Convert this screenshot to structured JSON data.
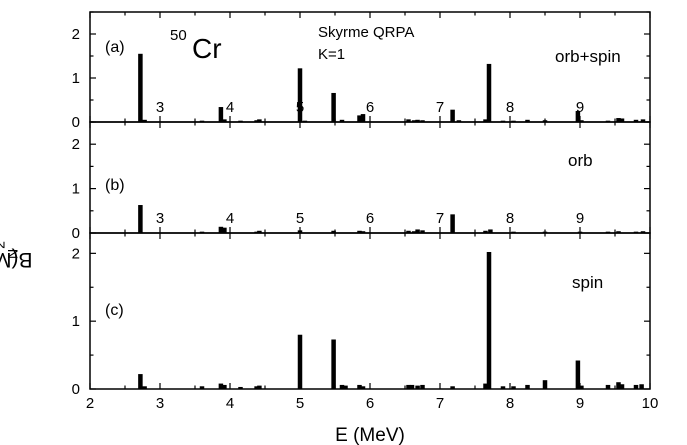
{
  "chart_data": {
    "type": "bar",
    "xlabel": "E (MeV)",
    "ylabel_main": "B(M1) (μ",
    "ylabel_sub": "N",
    "ylabel_sup": "2",
    "ylabel_close": ")",
    "xlim": [
      2,
      10
    ],
    "x_ticks": [
      "2",
      "3",
      "4",
      "5",
      "6",
      "7",
      "8",
      "9",
      "10"
    ],
    "annotation_isotope_mass": "50",
    "annotation_isotope": "Cr",
    "annotation_method": "Skyrme QRPA",
    "annotation_k": "K=1",
    "panels": [
      {
        "panel_label": "(a)",
        "series_label": "orb+spin",
        "ylim": [
          0,
          2.5
        ],
        "y_ticks": [
          "0",
          "1",
          "2"
        ],
        "x_tick_labels": [
          "3",
          "4",
          "5",
          "6",
          "7",
          "8",
          "9"
        ],
        "x": [
          2.72,
          2.78,
          3.6,
          3.87,
          3.92,
          4.15,
          4.38,
          4.42,
          5.0,
          5.07,
          5.48,
          5.6,
          5.85,
          5.9,
          6.55,
          6.63,
          6.68,
          6.75,
          7.18,
          7.27,
          7.65,
          7.7,
          7.9,
          8.05,
          8.25,
          8.5,
          8.97,
          9.02,
          9.4,
          9.55,
          9.6,
          9.8,
          9.9
        ],
        "values": [
          1.55,
          0.05,
          0.03,
          0.34,
          0.06,
          0.03,
          0.04,
          0.06,
          1.22,
          0.03,
          0.66,
          0.05,
          0.15,
          0.18,
          0.06,
          0.04,
          0.05,
          0.04,
          0.28,
          0.04,
          0.06,
          1.32,
          0.03,
          0.03,
          0.05,
          0.04,
          0.25,
          0.04,
          0.03,
          0.09,
          0.08,
          0.05,
          0.06
        ]
      },
      {
        "panel_label": "(b)",
        "series_label": "orb",
        "ylim": [
          0,
          2.5
        ],
        "y_ticks": [
          "0",
          "1",
          "2"
        ],
        "x_tick_labels": [
          "3",
          "4",
          "5",
          "6",
          "7",
          "8",
          "9"
        ],
        "x": [
          2.72,
          3.6,
          3.87,
          3.92,
          4.38,
          4.42,
          5.0,
          5.48,
          5.85,
          5.9,
          6.55,
          6.63,
          6.68,
          6.75,
          7.18,
          7.65,
          7.72,
          8.05,
          8.5,
          9.0,
          9.4,
          9.55,
          9.8,
          9.9
        ],
        "values": [
          0.63,
          0.03,
          0.14,
          0.12,
          0.03,
          0.05,
          0.06,
          0.05,
          0.05,
          0.04,
          0.05,
          0.04,
          0.08,
          0.06,
          0.42,
          0.05,
          0.08,
          0.03,
          0.03,
          0.03,
          0.03,
          0.04,
          0.03,
          0.04
        ]
      },
      {
        "panel_label": "(c)",
        "series_label": "spin",
        "ylim": [
          0,
          2.3
        ],
        "y_ticks": [
          "0",
          "1",
          "2"
        ],
        "x_tick_labels": [
          "2",
          "3",
          "4",
          "5",
          "6",
          "7",
          "8",
          "9",
          "10"
        ],
        "x": [
          2.72,
          2.78,
          3.6,
          3.87,
          3.92,
          4.15,
          4.38,
          4.42,
          5.0,
          5.48,
          5.6,
          5.65,
          5.85,
          5.9,
          6.55,
          6.6,
          6.68,
          6.75,
          7.18,
          7.65,
          7.7,
          7.9,
          8.05,
          8.25,
          8.5,
          8.97,
          9.02,
          9.4,
          9.55,
          9.6,
          9.8,
          9.88
        ],
        "values": [
          0.22,
          0.04,
          0.04,
          0.08,
          0.06,
          0.03,
          0.04,
          0.05,
          0.8,
          0.73,
          0.06,
          0.05,
          0.06,
          0.04,
          0.06,
          0.06,
          0.05,
          0.06,
          0.04,
          0.08,
          2.02,
          0.04,
          0.04,
          0.06,
          0.13,
          0.42,
          0.05,
          0.06,
          0.1,
          0.07,
          0.06,
          0.07
        ]
      }
    ]
  }
}
